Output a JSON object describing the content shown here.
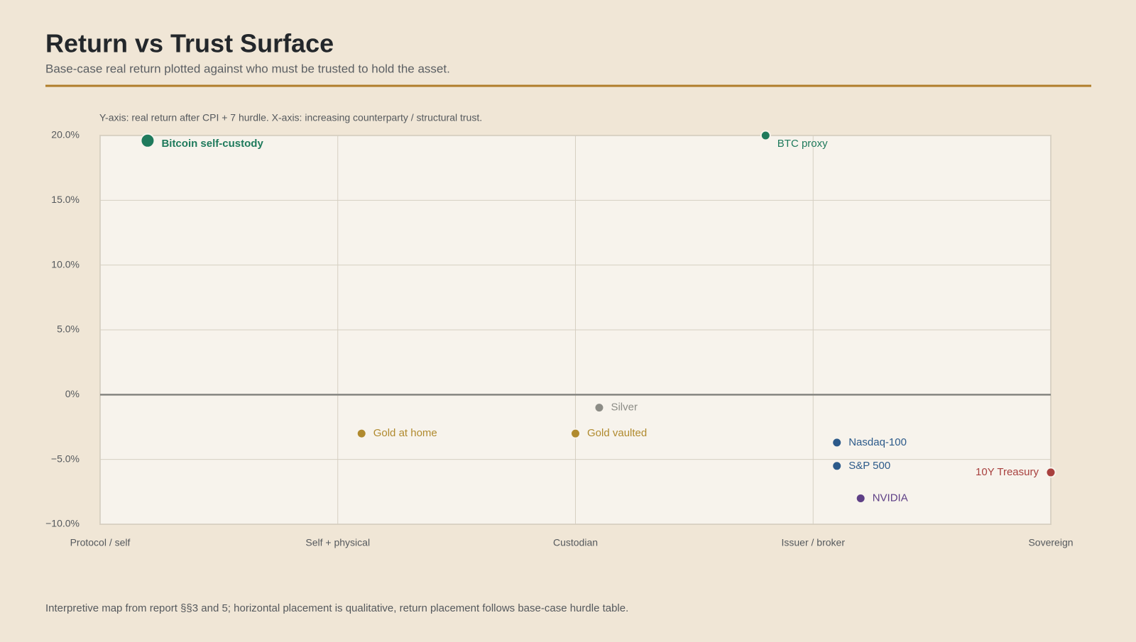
{
  "chart_data": {
    "type": "scatter",
    "title": "Return vs Trust Surface",
    "subtitle": "Base-case real return plotted against who must be trusted to hold the asset.",
    "annotation": "Y-axis: real return after CPI + 7 hurdle. X-axis: increasing counterparty / structural trust.",
    "footnote": "Interpretive map from report §§3 and 5; horizontal placement is qualitative, return placement follows base-case hurdle table.",
    "xlim": [
      0,
      4
    ],
    "xticks": [
      {
        "value": 0,
        "label": "Protocol / self"
      },
      {
        "value": 1,
        "label": "Self + physical"
      },
      {
        "value": 2,
        "label": "Custodian"
      },
      {
        "value": 3,
        "label": "Issuer / broker"
      },
      {
        "value": 4,
        "label": "Sovereign"
      }
    ],
    "ylim": [
      -10,
      20
    ],
    "yticks": [
      {
        "value": 20,
        "label": "20.0%"
      },
      {
        "value": 15,
        "label": "15.0%"
      },
      {
        "value": 10,
        "label": "10.0%"
      },
      {
        "value": 5,
        "label": "5.0%"
      },
      {
        "value": 0,
        "label": "0%"
      },
      {
        "value": -5,
        "label": "−5.0%"
      },
      {
        "value": -10,
        "label": "−10.0%"
      }
    ],
    "grid": true,
    "series": [
      {
        "name": "Bitcoin self-custody",
        "color": "#1f7a5c",
        "x": [
          0.2
        ],
        "values": [
          19.6
        ],
        "highlight": true
      },
      {
        "name": "BTC proxy",
        "color": "#1f7a5c",
        "x": [
          2.8
        ],
        "values": [
          20.0
        ]
      },
      {
        "name": "Silver",
        "color": "#8c8c86",
        "x": [
          2.1
        ],
        "values": [
          -1.0
        ]
      },
      {
        "name": "Gold at home",
        "color": "#b08a2e",
        "x": [
          1.1
        ],
        "values": [
          -3.0
        ]
      },
      {
        "name": "Gold vaulted",
        "color": "#b08a2e",
        "x": [
          2.0
        ],
        "values": [
          -3.0
        ]
      },
      {
        "name": "Nasdaq-100",
        "color": "#2c5a8a",
        "x": [
          3.1
        ],
        "values": [
          -3.7
        ]
      },
      {
        "name": "S&P 500",
        "color": "#2c5a8a",
        "x": [
          3.1
        ],
        "values": [
          -5.5
        ]
      },
      {
        "name": "NVIDIA",
        "color": "#5e3f86",
        "x": [
          3.2
        ],
        "values": [
          -8.0
        ]
      },
      {
        "name": "10Y Treasury",
        "color": "#a8403e",
        "x": [
          4.0
        ],
        "values": [
          -6.0
        ]
      }
    ]
  }
}
